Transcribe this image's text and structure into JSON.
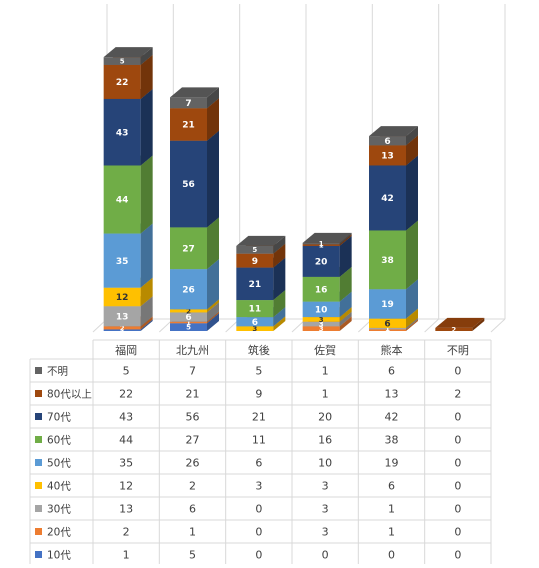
{
  "chart_data": {
    "type": "bar",
    "stacked": true,
    "three_d": true,
    "categories": [
      "福岡",
      "北九州",
      "筑後",
      "佐賀",
      "熊本",
      "不明"
    ],
    "series": [
      {
        "name": "10代",
        "values": [
          1,
          5,
          0,
          0,
          0,
          0
        ],
        "color": "#4472C4"
      },
      {
        "name": "20代",
        "values": [
          2,
          1,
          0,
          3,
          1,
          0
        ],
        "color": "#ED7D31"
      },
      {
        "name": "30代",
        "values": [
          13,
          6,
          0,
          3,
          1,
          0
        ],
        "color": "#A5A5A5"
      },
      {
        "name": "40代",
        "values": [
          12,
          2,
          3,
          3,
          6,
          0
        ],
        "color": "#FFC000"
      },
      {
        "name": "50代",
        "values": [
          35,
          26,
          6,
          10,
          19,
          0
        ],
        "color": "#5B9BD5"
      },
      {
        "name": "60代",
        "values": [
          44,
          27,
          11,
          16,
          38,
          0
        ],
        "color": "#70AD47"
      },
      {
        "name": "70代",
        "values": [
          43,
          56,
          21,
          20,
          42,
          0
        ],
        "color": "#264478"
      },
      {
        "name": "80代以上",
        "values": [
          22,
          21,
          9,
          1,
          13,
          2
        ],
        "color": "#9E480E"
      },
      {
        "name": "不明",
        "values": [
          5,
          7,
          5,
          1,
          6,
          0
        ],
        "color": "#636363"
      }
    ],
    "data_table": true,
    "legend_placement": "in-table-left",
    "grid": true
  }
}
